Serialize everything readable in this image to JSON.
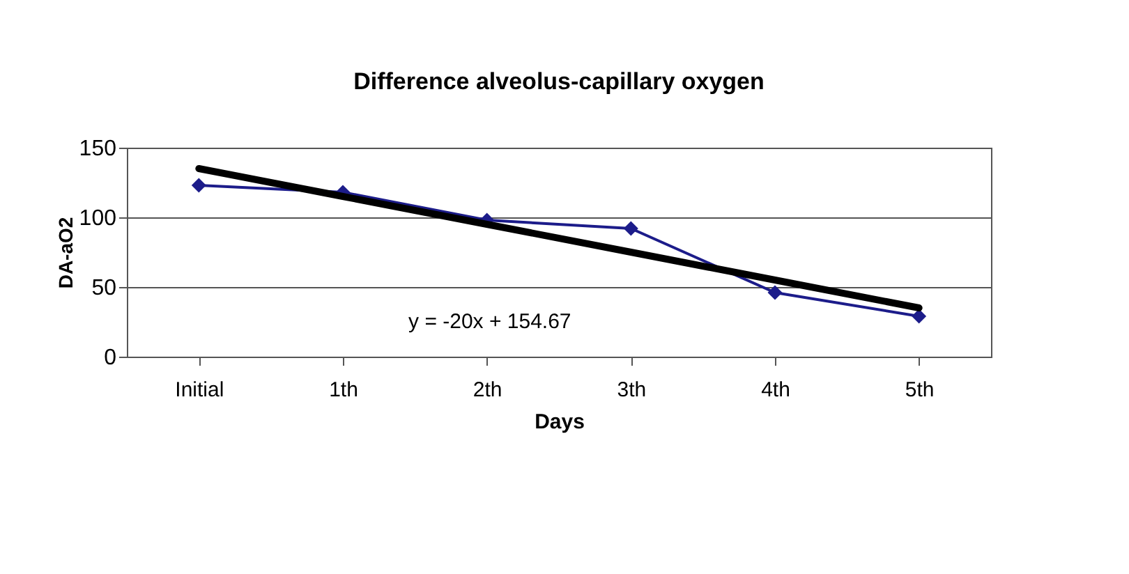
{
  "chart_data": {
    "type": "line",
    "title": "Difference alveolus-capillary oxygen",
    "xlabel": "Days",
    "ylabel": "DA-aO2",
    "categories": [
      "Initial",
      "1th",
      "2th",
      "3th",
      "4th",
      "5th"
    ],
    "series": [
      {
        "color": "#1c1c8a",
        "values": [
          123,
          118,
          98,
          92,
          46,
          29
        ],
        "marker": "diamond",
        "line_style": "solid"
      },
      {
        "type": "line",
        "color": "#000000",
        "values": [
          135,
          115,
          95,
          75,
          55,
          35
        ],
        "marker": "none",
        "line_style": "solid"
      }
    ],
    "ylim": [
      0,
      150
    ],
    "yticks": [
      0,
      50,
      100,
      150
    ],
    "grid": "y",
    "annotations": [
      "y = -20x + 154.67"
    ]
  }
}
